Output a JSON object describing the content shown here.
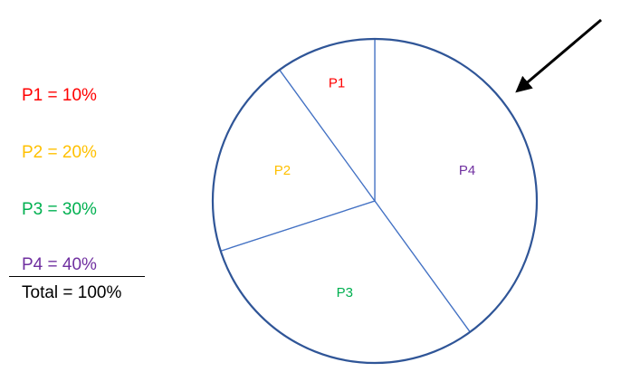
{
  "chart_data": {
    "type": "pie",
    "categories": [
      "P1",
      "P2",
      "P3",
      "P4"
    ],
    "values": [
      10,
      20,
      30,
      40
    ],
    "colors": [
      "#ff0000",
      "#ffc000",
      "#00b050",
      "#7030a0"
    ],
    "legend": [
      "P1 = 10%",
      "P2 = 20%",
      "P3 = 30%",
      "P4 = 40%"
    ],
    "total_label": "Total = 100%",
    "legend_position": "left",
    "outline_color": "#2f5597",
    "divider_color": "#4472c4",
    "annotation": "arrow-pointing-at-P4"
  }
}
